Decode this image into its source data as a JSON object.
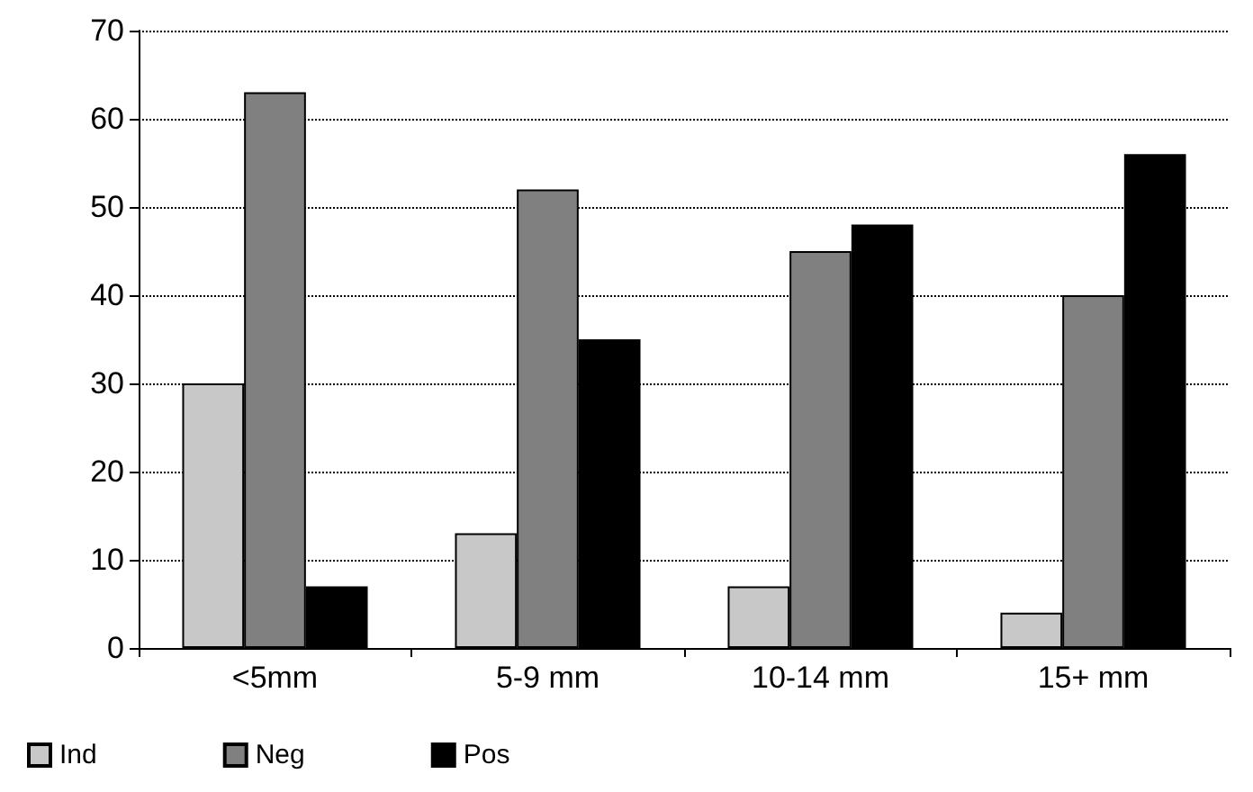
{
  "chart_data": {
    "type": "bar",
    "categories": [
      "<5mm",
      "5-9 mm",
      "10-14 mm",
      "15+ mm"
    ],
    "series": [
      {
        "name": "Ind",
        "color": "#c8c8c8",
        "values": [
          30,
          13,
          7,
          4
        ]
      },
      {
        "name": "Neg",
        "color": "#808080",
        "values": [
          63,
          52,
          45,
          40
        ]
      },
      {
        "name": "Pos",
        "color": "#000000",
        "values": [
          7,
          35,
          48,
          56
        ]
      }
    ],
    "ylim": [
      0,
      70
    ],
    "yticks": [
      0,
      10,
      20,
      30,
      40,
      50,
      60,
      70
    ],
    "grid": "y",
    "line_style": "dotted",
    "legend": "bottom left"
  }
}
